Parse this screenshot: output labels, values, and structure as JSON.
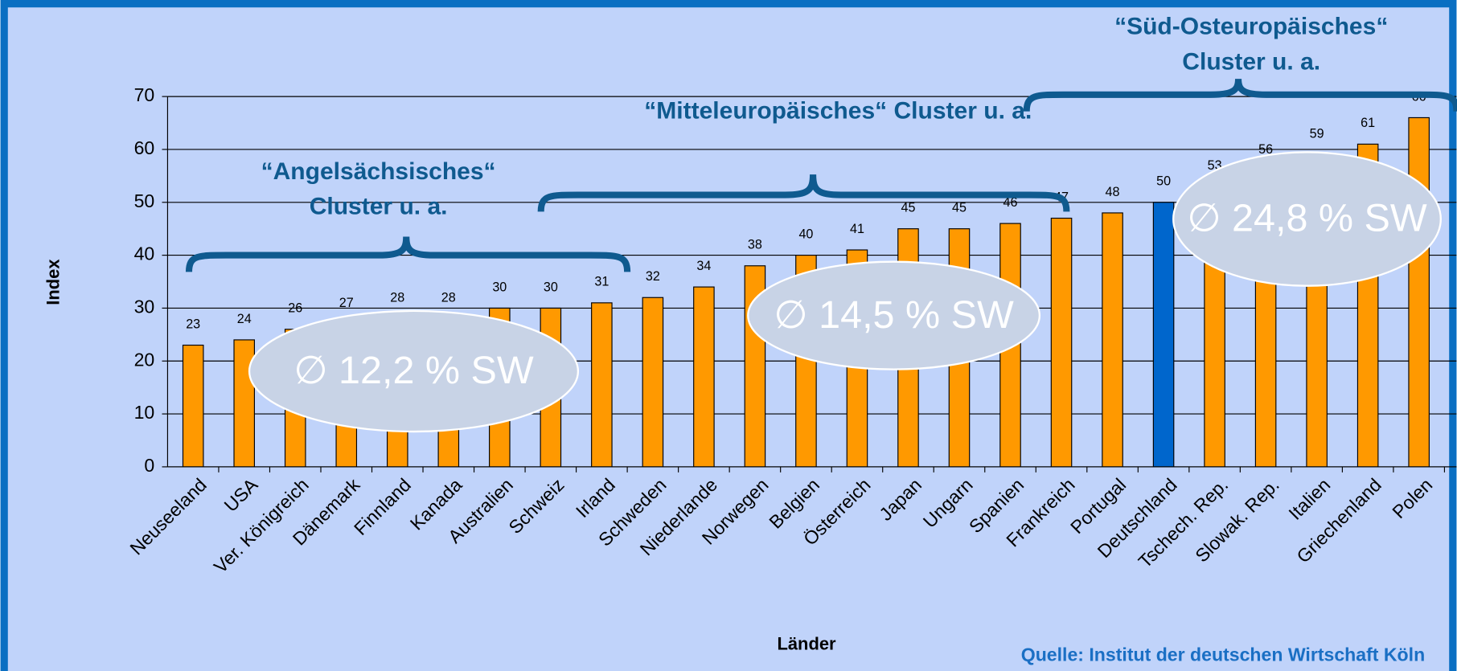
{
  "chart_data": {
    "type": "bar",
    "categories": [
      "Neuseeland",
      "USA",
      "Ver. Königreich",
      "Dänemark",
      "Finnland",
      "Kanada",
      "Australien",
      "Schweiz",
      "Irland",
      "Schweden",
      "Niederlande",
      "Norwegen",
      "Belgien",
      "Österreich",
      "Japan",
      "Ungarn",
      "Spanien",
      "Frankreich",
      "Portugal",
      "Deutschland",
      "Tschech. Rep.",
      "Slowak. Rep.",
      "Italien",
      "Griechenland",
      "Polen"
    ],
    "values": [
      23,
      24,
      26,
      27,
      28,
      28,
      30,
      30,
      31,
      32,
      34,
      38,
      40,
      41,
      45,
      45,
      46,
      47,
      48,
      50,
      53,
      56,
      59,
      61,
      66
    ],
    "colors": [
      "#ff9900",
      "#ff9900",
      "#ff9900",
      "#ff9900",
      "#ff9900",
      "#ff9900",
      "#ff9900",
      "#ff9900",
      "#ff9900",
      "#ff9900",
      "#ff9900",
      "#ff9900",
      "#ff9900",
      "#ff9900",
      "#ff9900",
      "#ff9900",
      "#ff9900",
      "#ff9900",
      "#ff9900",
      "#0066cc",
      "#ff9900",
      "#ff9900",
      "#ff9900",
      "#ff9900",
      "#ff9900"
    ],
    "ylim": [
      0,
      70
    ],
    "yticks": [
      0,
      10,
      20,
      30,
      40,
      50,
      60,
      70
    ],
    "grid": true,
    "ylabel": "Index",
    "xlabel": "Länder",
    "source": "Quelle: Institut der deutschen Wirtschaft Köln",
    "clusters": [
      {
        "lines": [
          "“Angelsächsisches“",
          "Cluster u. a."
        ],
        "average": "∅ 12,2 % SW"
      },
      {
        "lines": [
          "“Mitteleuropäisches“ Cluster u. a."
        ],
        "average": "∅ 14,5 % SW"
      },
      {
        "lines": [
          "“Süd-Osteuropäisches“",
          "Cluster u. a."
        ],
        "average": "∅ 24,8 % SW"
      }
    ]
  }
}
